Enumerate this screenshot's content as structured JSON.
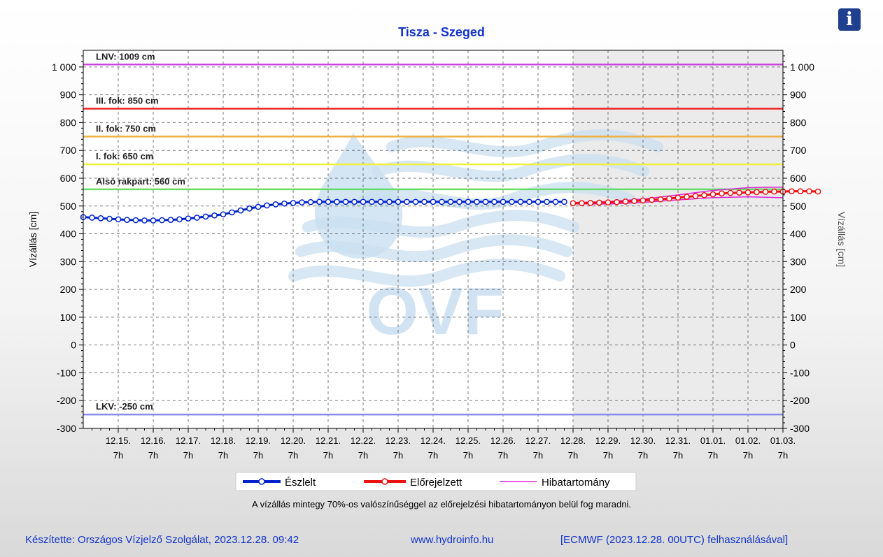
{
  "chart_data": {
    "type": "line",
    "title": "Tisza - Szeged",
    "ylabel_left": "Vízállás [cm]",
    "ylabel_right": "Vízállás [cm]",
    "ylim": [
      -300,
      1060
    ],
    "yticks": [
      -300,
      -200,
      -100,
      0,
      100,
      200,
      300,
      400,
      500,
      600,
      700,
      800,
      900,
      1000
    ],
    "ytick_labels": [
      "-300",
      "-200",
      "-100",
      "0",
      "100",
      "200",
      "300",
      "400",
      "500",
      "600",
      "700",
      "800",
      "900",
      "1 000"
    ],
    "xlim": [
      "12.14. 7h",
      "01.03. 7h"
    ],
    "xtick_labels": [
      [
        "12.15.",
        "7h"
      ],
      [
        "12.16.",
        "7h"
      ],
      [
        "12.17.",
        "7h"
      ],
      [
        "12.18.",
        "7h"
      ],
      [
        "12.19.",
        "7h"
      ],
      [
        "12.20.",
        "7h"
      ],
      [
        "12.21.",
        "7h"
      ],
      [
        "12.22.",
        "7h"
      ],
      [
        "12.23.",
        "7h"
      ],
      [
        "12.24.",
        "7h"
      ],
      [
        "12.25.",
        "7h"
      ],
      [
        "12.26.",
        "7h"
      ],
      [
        "12.27.",
        "7h"
      ],
      [
        "12.28.",
        "7h"
      ],
      [
        "12.29.",
        "7h"
      ],
      [
        "12.30.",
        "7h"
      ],
      [
        "12.31.",
        "7h"
      ],
      [
        "01.01.",
        "7h"
      ],
      [
        "01.02.",
        "7h"
      ],
      [
        "01.03.",
        "7h"
      ]
    ],
    "threshold_lines": [
      {
        "label": "LNV: 1009 cm",
        "value": 1009,
        "color": "#cc44dd"
      },
      {
        "label": "III. fok: 850 cm",
        "value": 850,
        "color": "#ee2222"
      },
      {
        "label": "II. fok: 750 cm",
        "value": 750,
        "color": "#f0b040"
      },
      {
        "label": "I. fok: 650 cm",
        "value": 650,
        "color": "#f0f040"
      },
      {
        "label": "Alsó rakpart: 560 cm",
        "value": 560,
        "color": "#66dd66"
      },
      {
        "label": "LKV: -250 cm",
        "value": -250,
        "color": "#8888ee"
      }
    ],
    "series": [
      {
        "name": "Észlelt",
        "color": "#0022cc",
        "start_day": 0,
        "step_days": 0.25,
        "values": [
          460,
          458,
          456,
          454,
          452,
          450,
          449,
          448,
          448,
          449,
          450,
          452,
          455,
          458,
          462,
          466,
          470,
          477,
          484,
          491,
          497,
          502,
          506,
          509,
          511,
          513,
          514,
          515,
          515,
          515,
          515,
          515,
          515,
          515,
          515,
          515,
          515,
          515,
          515,
          515,
          515,
          515,
          515,
          515,
          515,
          515,
          515,
          515,
          515,
          515,
          515,
          515,
          515,
          515,
          515,
          515
        ]
      },
      {
        "name": "Előrejelzett",
        "color": "#ee1111",
        "start_day": 14,
        "step_days": 0.25,
        "values": [
          510,
          510,
          511,
          512,
          513,
          514,
          516,
          518,
          520,
          522,
          524,
          527,
          530,
          533,
          536,
          539,
          542,
          545,
          547,
          548,
          549,
          550,
          551,
          552,
          552,
          553,
          553,
          553,
          552
        ]
      }
    ],
    "error_band": {
      "name": "Hibatartomány",
      "color": "#dd22dd",
      "start_day": 14,
      "step_days": 1,
      "upper": [
        512,
        516,
        525,
        540,
        556,
        566,
        568
      ],
      "lower": [
        508,
        507,
        513,
        522,
        530,
        533,
        530
      ]
    },
    "forecast_region_start": "12.28. 7h"
  },
  "watermark": "OVF",
  "info_icon": "info-icon",
  "legend": {
    "observed": "Észlelt",
    "forecast": "Előrejelzett",
    "error_range": "Hibatartomány"
  },
  "footnote": "A vízállás mintegy 70%-os valószínűséggel az előrejelzési hibatartományon belül fog maradni.",
  "footer": {
    "author": "Készítette: Országos Vízjelző Szolgálat, 2023.12.28. 09:42",
    "site": "www.hydroinfo.hu",
    "source": "[ECMWF (2023.12.28. 00UTC) felhasználásával]"
  }
}
